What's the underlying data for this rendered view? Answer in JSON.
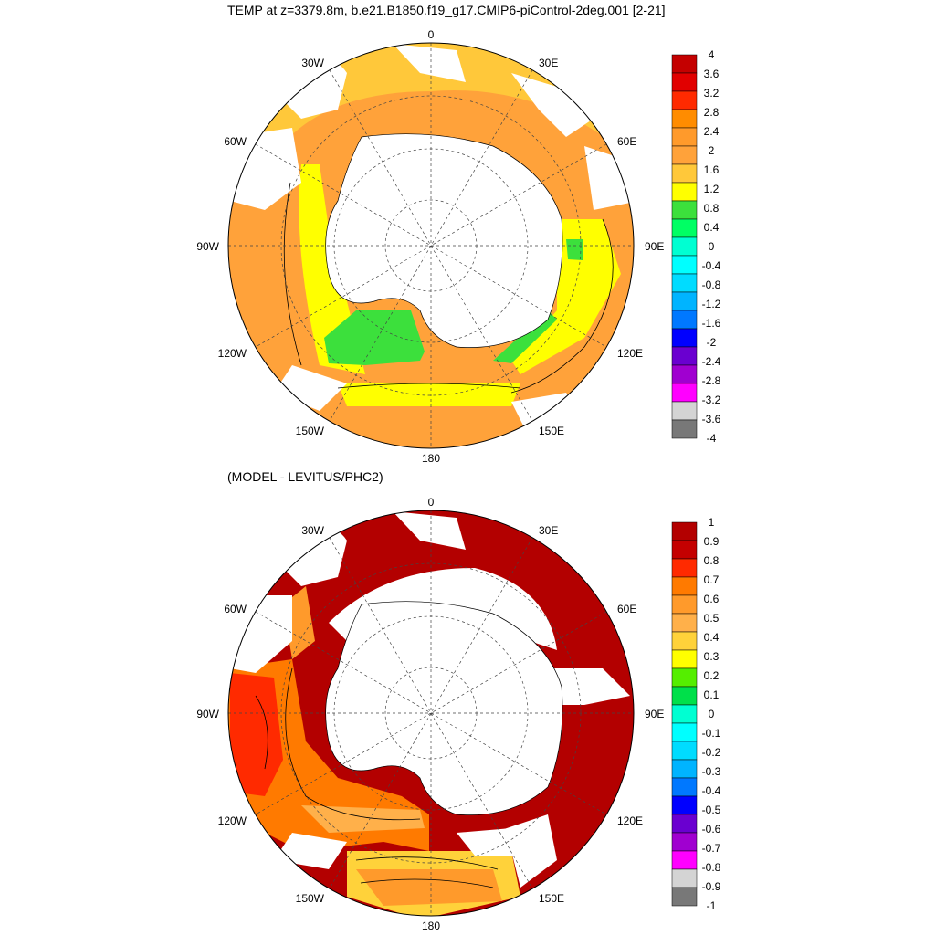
{
  "title": "TEMP at z=3379.8m, b.e21.B1850.f19_g17.CMIP6-piControl-2deg.001 [2-21]",
  "subtitle": "(MODEL - LEVITUS/PHC2)",
  "longitude_labels": {
    "top": "0",
    "left_30": "30W",
    "left_60": "60W",
    "left_90": "90W",
    "left_120": "120W",
    "left_150": "150W",
    "bottom": "180",
    "right_30": "30E",
    "right_60": "60E",
    "right_90": "90E",
    "right_120": "120E",
    "right_150": "150E"
  },
  "maps": [
    {
      "name": "temperature",
      "colorbar": {
        "labels": [
          "4",
          "3.6",
          "3.2",
          "2.8",
          "2.4",
          "2",
          "1.6",
          "1.2",
          "0.8",
          "0.4",
          "0",
          "-0.4",
          "-0.8",
          "-1.2",
          "-1.6",
          "-2",
          "-2.4",
          "-2.8",
          "-3.2",
          "-3.6",
          "-4"
        ],
        "colors": [
          "#c40000",
          "#e10000",
          "#ff2a00",
          "#ff8c00",
          "#ff9a2b",
          "#ffa23a",
          "#ffc83a",
          "#ffff00",
          "#3ce03c",
          "#00ff64",
          "#00ffd2",
          "#00ffff",
          "#00dcff",
          "#00b4ff",
          "#0078ff",
          "#0000ff",
          "#6a00d0",
          "#a000d0",
          "#ff00ff",
          "#d4d4d4",
          "#787878"
        ]
      }
    },
    {
      "name": "difference",
      "colorbar": {
        "labels": [
          "1",
          "0.9",
          "0.8",
          "0.7",
          "0.6",
          "0.5",
          "0.4",
          "0.3",
          "0.2",
          "0.1",
          "0",
          "-0.1",
          "-0.2",
          "-0.3",
          "-0.4",
          "-0.5",
          "-0.6",
          "-0.7",
          "-0.8",
          "-0.9",
          "-1"
        ],
        "colors": [
          "#b30000",
          "#c40000",
          "#ff2a00",
          "#ff7a00",
          "#ff9a2b",
          "#ffb04a",
          "#ffd23a",
          "#ffff00",
          "#55ee00",
          "#00e04a",
          "#00ffd2",
          "#00ffff",
          "#00dcff",
          "#00b4ff",
          "#0078ff",
          "#0000ff",
          "#6a00d0",
          "#a000d0",
          "#ff00ff",
          "#d4d4d4",
          "#787878"
        ]
      }
    }
  ]
}
